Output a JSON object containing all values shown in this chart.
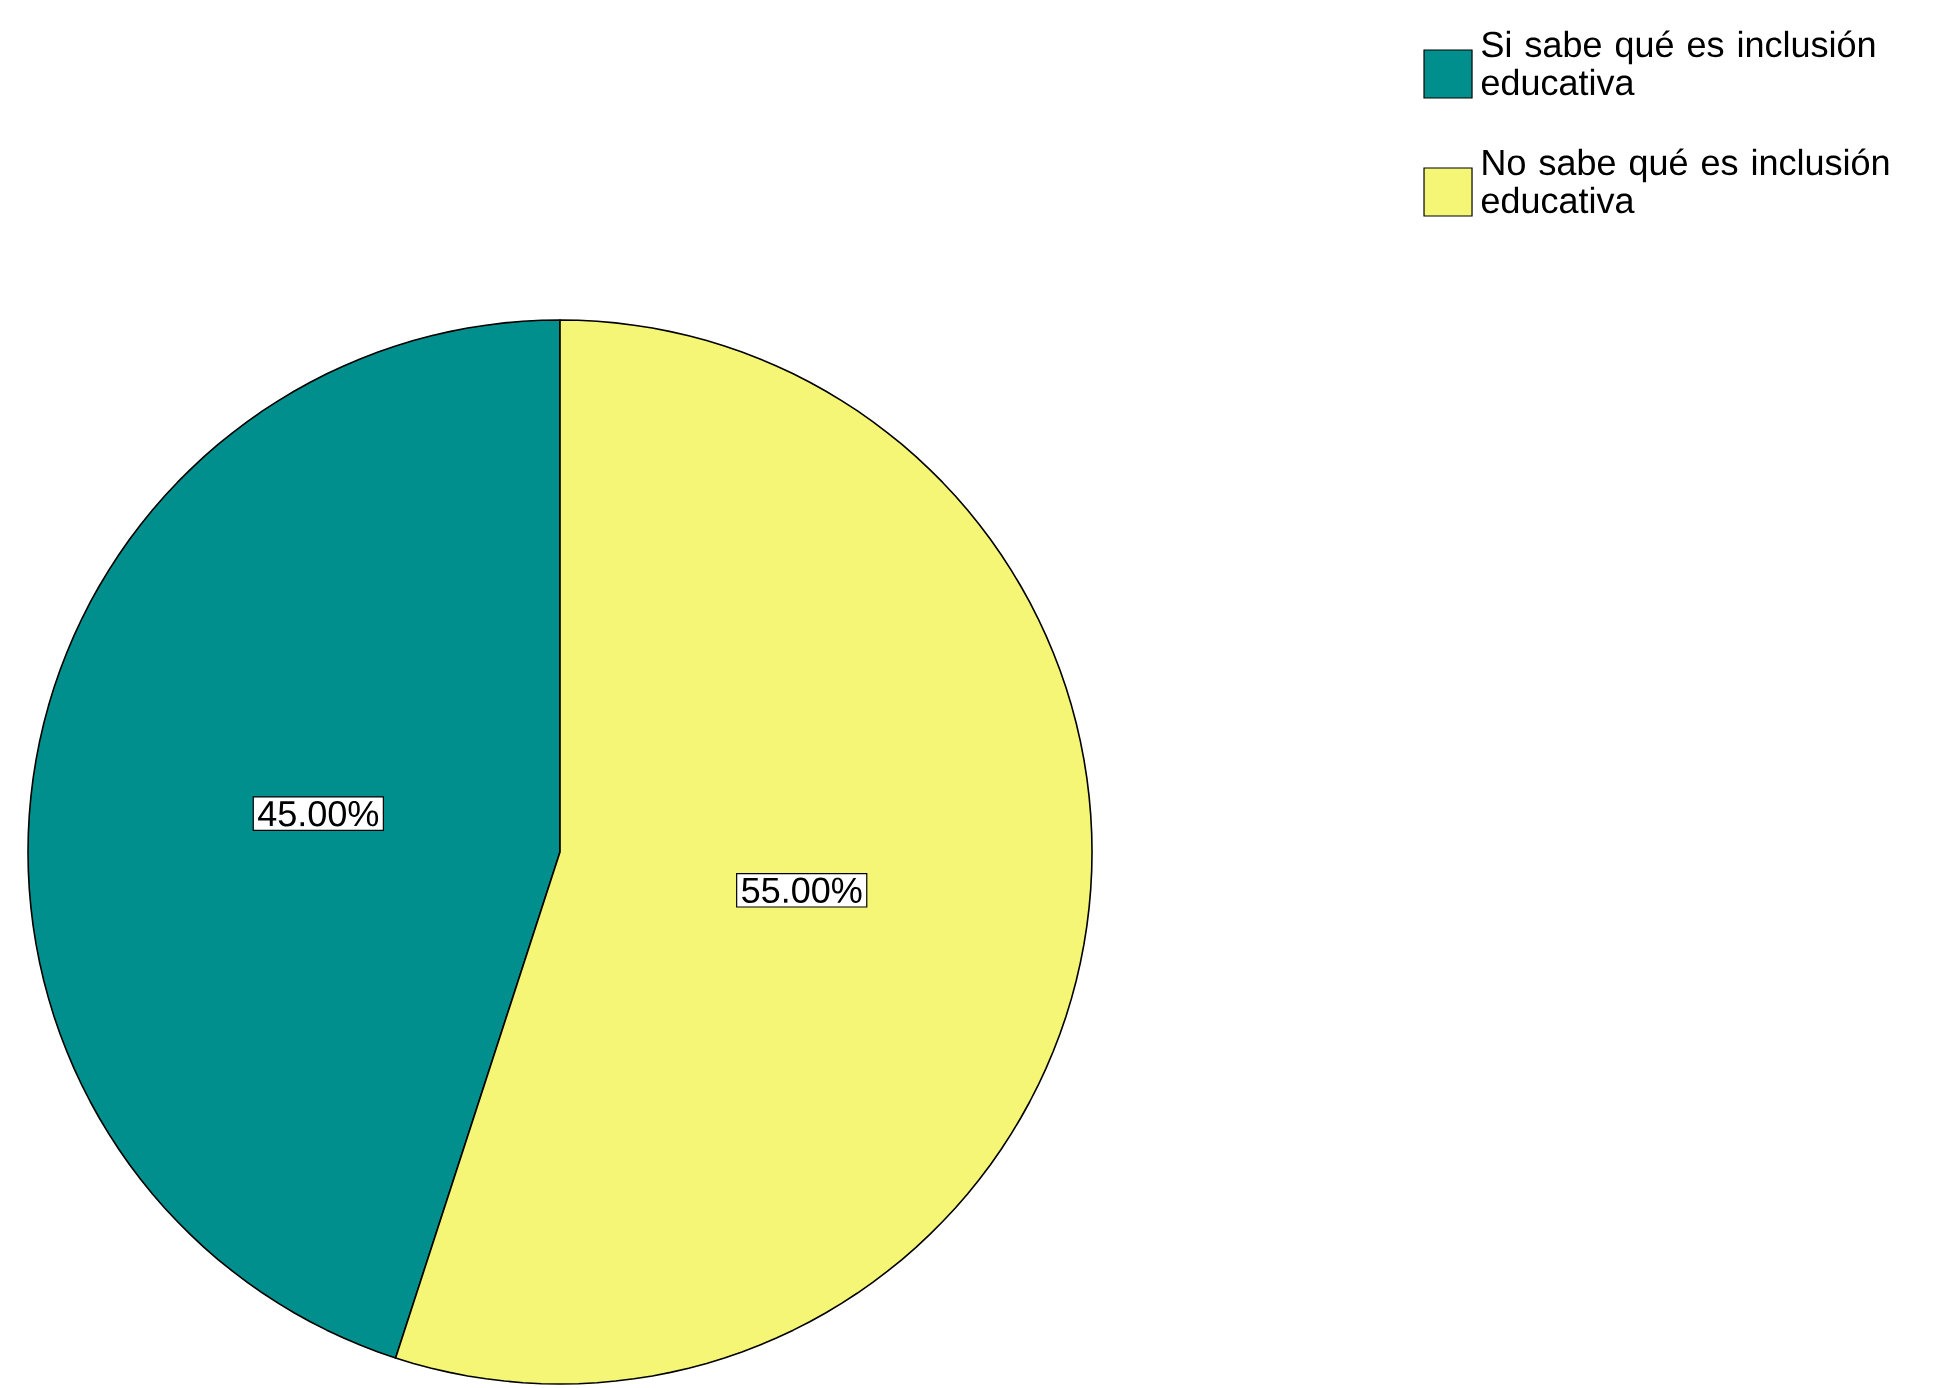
{
  "chart_data": {
    "type": "pie",
    "categories": [
      "Si sabe qué es inclusión educativa",
      "No sabe qué es inclusión educativa"
    ],
    "values": [
      45,
      55
    ],
    "colors": [
      "#008f8c",
      "#f5f576"
    ],
    "value_labels": [
      "45.00%",
      "55.00%"
    ],
    "legend": "top right"
  }
}
